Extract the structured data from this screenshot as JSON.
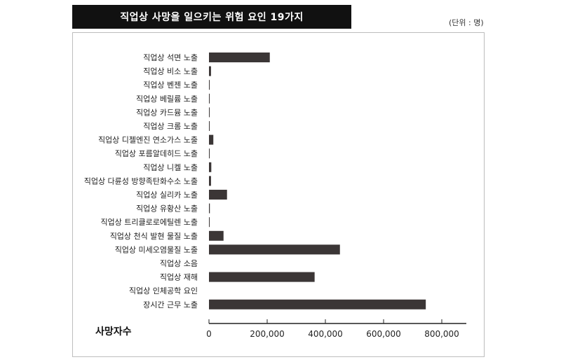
{
  "title": "직업상 사망을 일으키는 위험 요인 19가지",
  "unit_label": "(단위 : 명)",
  "colors": {
    "title_bg": "#111111",
    "bar": "#3b3636",
    "axis": "#222222"
  },
  "chart_data": {
    "type": "bar",
    "orientation": "horizontal",
    "title": "직업상 사망을 일으키는 위험 요인 19가지",
    "xlabel": "사망자수",
    "xlim": [
      0,
      800000
    ],
    "xticks": [
      0,
      200000,
      400000,
      600000,
      800000
    ],
    "xtick_labels": [
      "0",
      "200,000",
      "400,000",
      "600,000",
      "800,000"
    ],
    "grid": false,
    "categories": [
      "직업상 석면 노출",
      "직업상 비소 노출",
      "직업상 벤젠 노출",
      "직업상 베릴륨 노출",
      "직업상 카드뮴 노출",
      "직업상 크롬 노출",
      "직업상 디젤엔진 연소가스 노출",
      "직업상 포름알데히드 노출",
      "직업상 니켈 노출",
      "직업상 다륜성 방향족탄화수소 노출",
      "직업상 실리카 노출",
      "직업상 유황산 노출",
      "직업상 트리클로로에틸렌 노출",
      "직업상 천식 발현 물질 노출",
      "직업상 미세오염물질 노출",
      "직업상 소음",
      "직업상 재해",
      "직업상 인체공학 요인",
      "장시간 근무 노출"
    ],
    "values": [
      209000,
      7000,
      1000,
      1000,
      1000,
      1000,
      15000,
      1000,
      8000,
      7000,
      62000,
      3000,
      1000,
      50000,
      450000,
      0,
      363000,
      0,
      745000
    ]
  }
}
